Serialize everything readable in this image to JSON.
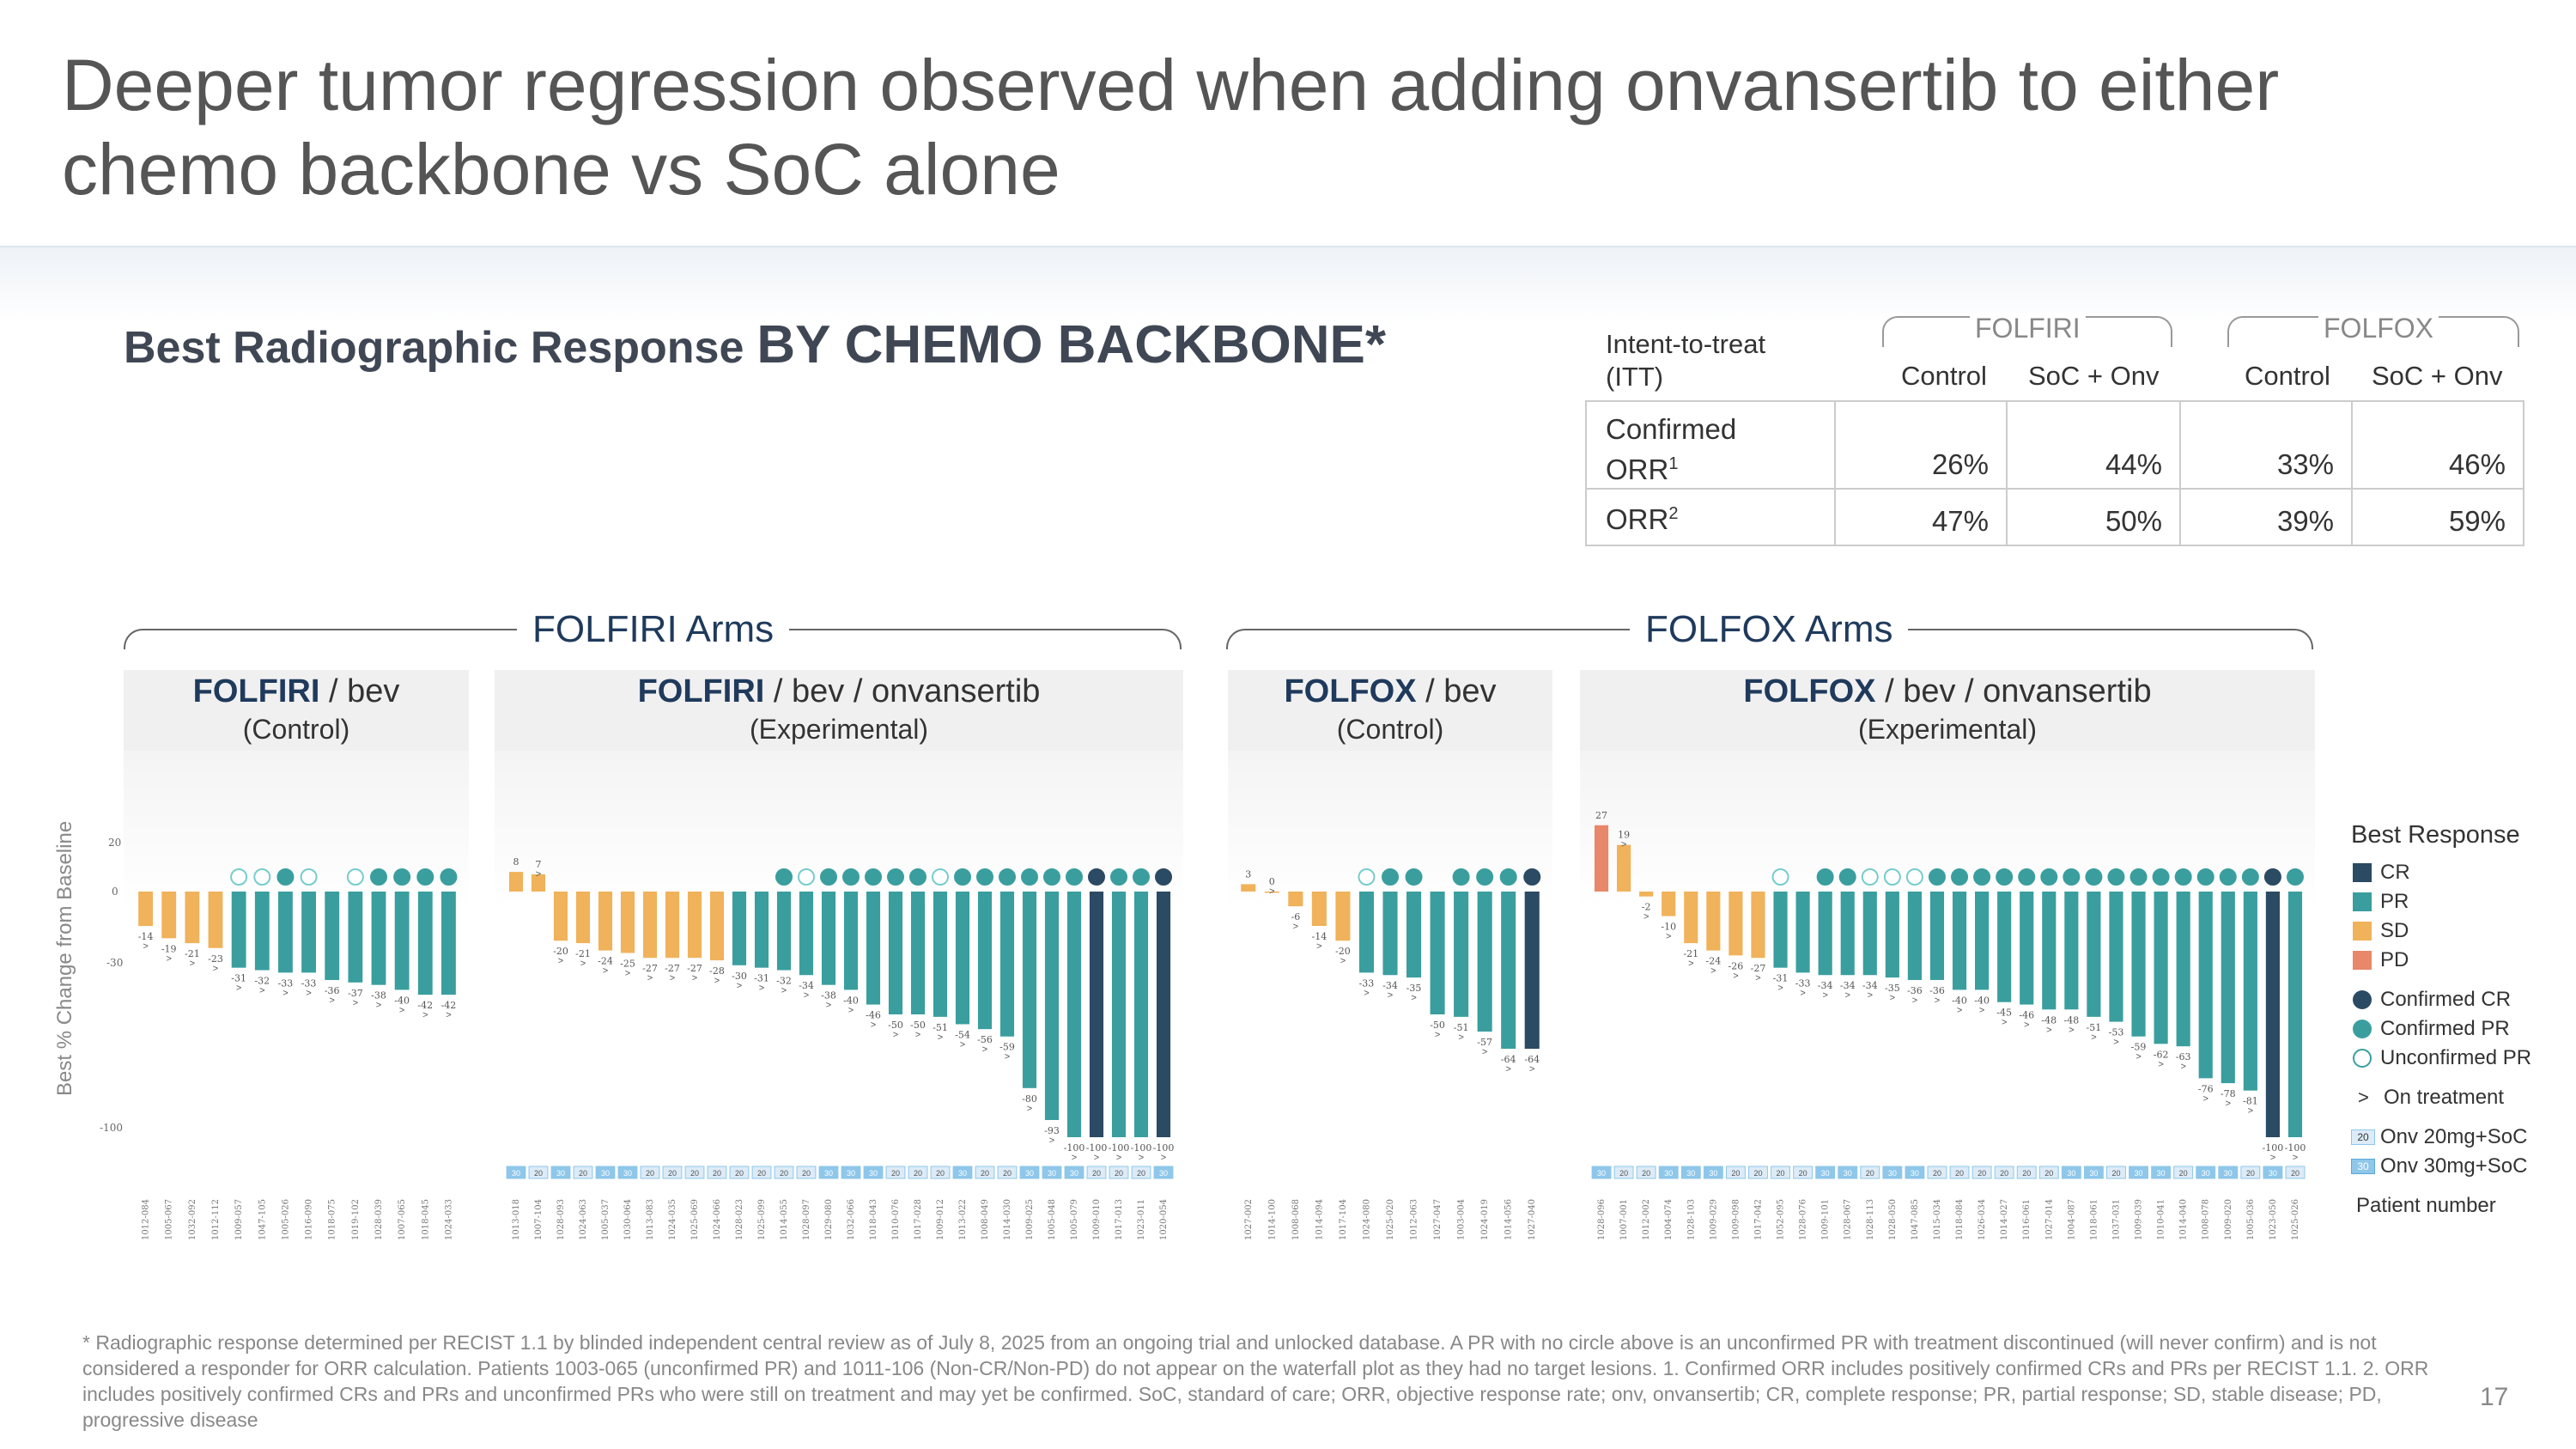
{
  "title": "Deeper tumor regression observed when adding onvansertib to either chemo backbone vs SoC alone",
  "subtitle": {
    "part1": "Best Radiographic Response",
    "part2": "BY CHEMO BACKBONE*"
  },
  "orr_table": {
    "header_row_label": "Intent-to-treat\n(ITT)",
    "groups": [
      "FOLFIRI",
      "FOLFOX"
    ],
    "columns": [
      "Control",
      "SoC + Onv",
      "Control",
      "SoC + Onv"
    ],
    "rows": [
      {
        "label_main": "Confirmed",
        "label_sub": "ORR",
        "label_sup": "1",
        "values": [
          "26%",
          "44%",
          "33%",
          "46%"
        ]
      },
      {
        "label_main": "",
        "label_sub": "ORR",
        "label_sup": "2",
        "values": [
          "47%",
          "50%",
          "39%",
          "59%"
        ]
      }
    ]
  },
  "arms": {
    "folfiri": "FOLFIRI Arms",
    "folfox": "FOLFOX Arms"
  },
  "panels": [
    {
      "bold": "FOLFIRI",
      "rest": " / bev",
      "sub": "(Control)"
    },
    {
      "bold": "FOLFIRI",
      "rest": " / bev / onvansertib",
      "sub": "(Experimental)"
    },
    {
      "bold": "FOLFOX",
      "rest": " / bev",
      "sub": "(Control)"
    },
    {
      "bold": "FOLFOX",
      "rest": " / bev / onvansertib",
      "sub": "(Experimental)"
    }
  ],
  "colors": {
    "CR": "#2b4a63",
    "PR": "#3a9e9e",
    "SD": "#f0b25a",
    "PD": "#e8876a",
    "dose20": "#dcebf7",
    "dose30": "#8ec7ea"
  },
  "legend": {
    "title": "Best Response",
    "items": [
      "CR",
      "PR",
      "SD",
      "PD"
    ],
    "circles": [
      "Confirmed CR",
      "Confirmed PR",
      "Unconfirmed PR"
    ],
    "on_treatment": "On treatment",
    "dose20": "Onv 20mg+SoC",
    "dose30": "Onv 30mg+SoC",
    "dose20_tag": "20",
    "dose30_tag": "30",
    "patient_number": "Patient number"
  },
  "chart_data": [
    {
      "type": "bar",
      "title": "FOLFIRI / bev (Control)",
      "ylabel": "Best % Change from Baseline",
      "yticks": [
        20,
        0,
        -30,
        -100
      ],
      "ylim": [
        -100,
        20
      ],
      "values": [
        -14,
        -19,
        -21,
        -23,
        -31,
        -32,
        -33,
        -33,
        -36,
        -37,
        -38,
        -40,
        -42,
        -42
      ],
      "response": [
        "SD",
        "SD",
        "SD",
        "SD",
        "PR",
        "PR",
        "PR",
        "PR",
        "PR",
        "PR",
        "PR",
        "PR",
        "PR",
        "PR"
      ],
      "circle": [
        "",
        "",
        "",
        "",
        "U",
        "U",
        "C",
        "U",
        "",
        "U",
        "C",
        "C",
        "C",
        "C"
      ],
      "on_treatment": [
        true,
        true,
        true,
        true,
        true,
        true,
        true,
        true,
        true,
        true,
        true,
        true,
        true,
        true
      ],
      "categories": [
        "1012-084",
        "1005-067",
        "1032-092",
        "1012-112",
        "1009-057",
        "1047-105",
        "1005-026",
        "1016-090",
        "1018-075",
        "1019-102",
        "1028-039",
        "1007-065",
        "1018-045",
        "1024-033"
      ]
    },
    {
      "type": "bar",
      "title": "FOLFIRI / bev / onvansertib (Experimental)",
      "values": [
        8,
        7,
        -20,
        -21,
        -24,
        -25,
        -27,
        -27,
        -27,
        -28,
        -30,
        -31,
        -32,
        -34,
        -38,
        -40,
        -46,
        -50,
        -50,
        -51,
        -54,
        -56,
        -59,
        -80,
        -93,
        -100,
        -100,
        -100,
        -100,
        -100
      ],
      "response": [
        "SD",
        "SD",
        "SD",
        "SD",
        "SD",
        "SD",
        "SD",
        "SD",
        "SD",
        "SD",
        "PR",
        "PR",
        "PR",
        "PR",
        "PR",
        "PR",
        "PR",
        "PR",
        "PR",
        "PR",
        "PR",
        "PR",
        "PR",
        "PR",
        "PR",
        "PR",
        "CR",
        "PR",
        "PR",
        "CR"
      ],
      "circle": [
        "",
        "",
        "",
        "",
        "",
        "",
        "",
        "",
        "",
        "",
        "",
        "",
        "C",
        "U",
        "C",
        "C",
        "C",
        "C",
        "C",
        "U",
        "C",
        "C",
        "C",
        "C",
        "C",
        "C",
        "C",
        "C",
        "C",
        "C"
      ],
      "on_treatment": [
        false,
        true,
        true,
        true,
        true,
        true,
        true,
        true,
        true,
        true,
        true,
        true,
        true,
        true,
        true,
        true,
        true,
        true,
        true,
        true,
        true,
        true,
        true,
        true,
        true,
        true,
        true,
        true,
        true,
        true
      ],
      "dose": [
        "30",
        "20",
        "30",
        "20",
        "30",
        "30",
        "20",
        "20",
        "20",
        "20",
        "20",
        "20",
        "20",
        "20",
        "30",
        "30",
        "30",
        "20",
        "20",
        "20",
        "30",
        "20",
        "20",
        "30",
        "30",
        "30",
        "20",
        "20",
        "20",
        "30"
      ],
      "categories": [
        "1013-018",
        "1007-104",
        "1028-093",
        "1024-063",
        "1005-037",
        "1030-064",
        "1013-083",
        "1024-035",
        "1025-069",
        "1024-066",
        "1028-023",
        "1025-099",
        "1014-055",
        "1028-097",
        "1029-080",
        "1032-066",
        "1018-043",
        "1010-076",
        "1017-028",
        "1009-012",
        "1013-022",
        "1008-049",
        "1014-030",
        "1009-025",
        "1005-048",
        "1005-079",
        "1009-010",
        "1017-013",
        "1023-011",
        "1020-054"
      ]
    },
    {
      "type": "bar",
      "title": "FOLFOX / bev (Control)",
      "values": [
        3,
        0,
        -6,
        -14,
        -20,
        -33,
        -34,
        -35,
        -50,
        -51,
        -57,
        -64,
        -64
      ],
      "response": [
        "SD",
        "SD",
        "SD",
        "SD",
        "SD",
        "PR",
        "PR",
        "PR",
        "PR",
        "PR",
        "PR",
        "PR",
        "CR"
      ],
      "circle": [
        "",
        "",
        "",
        "",
        "",
        "U",
        "C",
        "C",
        "",
        "C",
        "C",
        "C",
        "C"
      ],
      "on_treatment": [
        false,
        true,
        true,
        true,
        true,
        true,
        true,
        true,
        true,
        true,
        true,
        true,
        true
      ],
      "categories": [
        "1027-002",
        "1014-100",
        "1008-068",
        "1014-094",
        "1017-104",
        "1024-080",
        "1025-020",
        "1012-063",
        "1027-047",
        "1003-004",
        "1024-019",
        "1014-056",
        "1027-040"
      ]
    },
    {
      "type": "bar",
      "title": "FOLFOX / bev / onvansertib (Experimental)",
      "values": [
        27,
        19,
        -2,
        -10,
        -21,
        -24,
        -26,
        -27,
        -31,
        -33,
        -34,
        -34,
        -34,
        -35,
        -36,
        -36,
        -40,
        -40,
        -45,
        -46,
        -48,
        -48,
        -51,
        -53,
        -59,
        -62,
        -63,
        -76,
        -78,
        -81,
        -100,
        -100
      ],
      "response": [
        "PD",
        "SD",
        "SD",
        "SD",
        "SD",
        "SD",
        "SD",
        "SD",
        "PR",
        "PR",
        "PR",
        "PR",
        "PR",
        "PR",
        "PR",
        "PR",
        "PR",
        "PR",
        "PR",
        "PR",
        "PR",
        "PR",
        "PR",
        "PR",
        "PR",
        "PR",
        "PR",
        "PR",
        "PR",
        "PR",
        "CR",
        "PR"
      ],
      "circle": [
        "",
        "",
        "",
        "",
        "",
        "",
        "",
        "",
        "U",
        "",
        "C",
        "C",
        "U",
        "U",
        "U",
        "C",
        "C",
        "C",
        "C",
        "C",
        "C",
        "C",
        "C",
        "C",
        "C",
        "C",
        "C",
        "C",
        "C",
        "C",
        "C",
        "C"
      ],
      "on_treatment": [
        false,
        true,
        true,
        true,
        true,
        true,
        true,
        true,
        true,
        true,
        true,
        true,
        true,
        true,
        true,
        true,
        true,
        true,
        true,
        true,
        true,
        true,
        true,
        true,
        true,
        true,
        true,
        true,
        true,
        true,
        true,
        true
      ],
      "dose": [
        "30",
        "20",
        "20",
        "30",
        "30",
        "30",
        "20",
        "20",
        "20",
        "20",
        "30",
        "30",
        "20",
        "30",
        "30",
        "20",
        "20",
        "20",
        "20",
        "20",
        "20",
        "30",
        "30",
        "20",
        "30",
        "30",
        "20",
        "30",
        "30",
        "20",
        "30",
        "20"
      ],
      "categories": [
        "1028-096",
        "1007-001",
        "1012-002",
        "1004-074",
        "1028-103",
        "1009-029",
        "1009-098",
        "1017-042",
        "1052-095",
        "1028-076",
        "1009-101",
        "1028-067",
        "1028-113",
        "1028-050",
        "1047-085",
        "1015-034",
        "1018-084",
        "1026-034",
        "1014-027",
        "1016-061",
        "1027-014",
        "1004-087",
        "1018-061",
        "1037-031",
        "1009-039",
        "1010-041",
        "1014-040",
        "1008-078",
        "1009-020",
        "1005-036",
        "1023-050",
        "1025-026"
      ]
    }
  ],
  "footnote": "* Radiographic response determined per RECIST 1.1 by blinded independent central review as of July 8, 2025 from an ongoing trial and unlocked database. A PR with no circle above is an unconfirmed PR with treatment discontinued (will never confirm) and is not considered a responder for ORR calculation. Patients 1003-065 (unconfirmed PR) and 1011-106 (Non-CR/Non-PD) do not appear on the waterfall plot as they had no target lesions. 1. Confirmed ORR includes positively confirmed CRs and PRs per RECIST 1.1. 2. ORR includes positively confirmed CRs and PRs and unconfirmed PRs who were still on treatment and may yet be confirmed. SoC, standard of care; ORR, objective response rate; onv, onvansertib; CR, complete response; PR, partial response; SD, stable disease; PD, progressive disease",
  "page_number": "17"
}
